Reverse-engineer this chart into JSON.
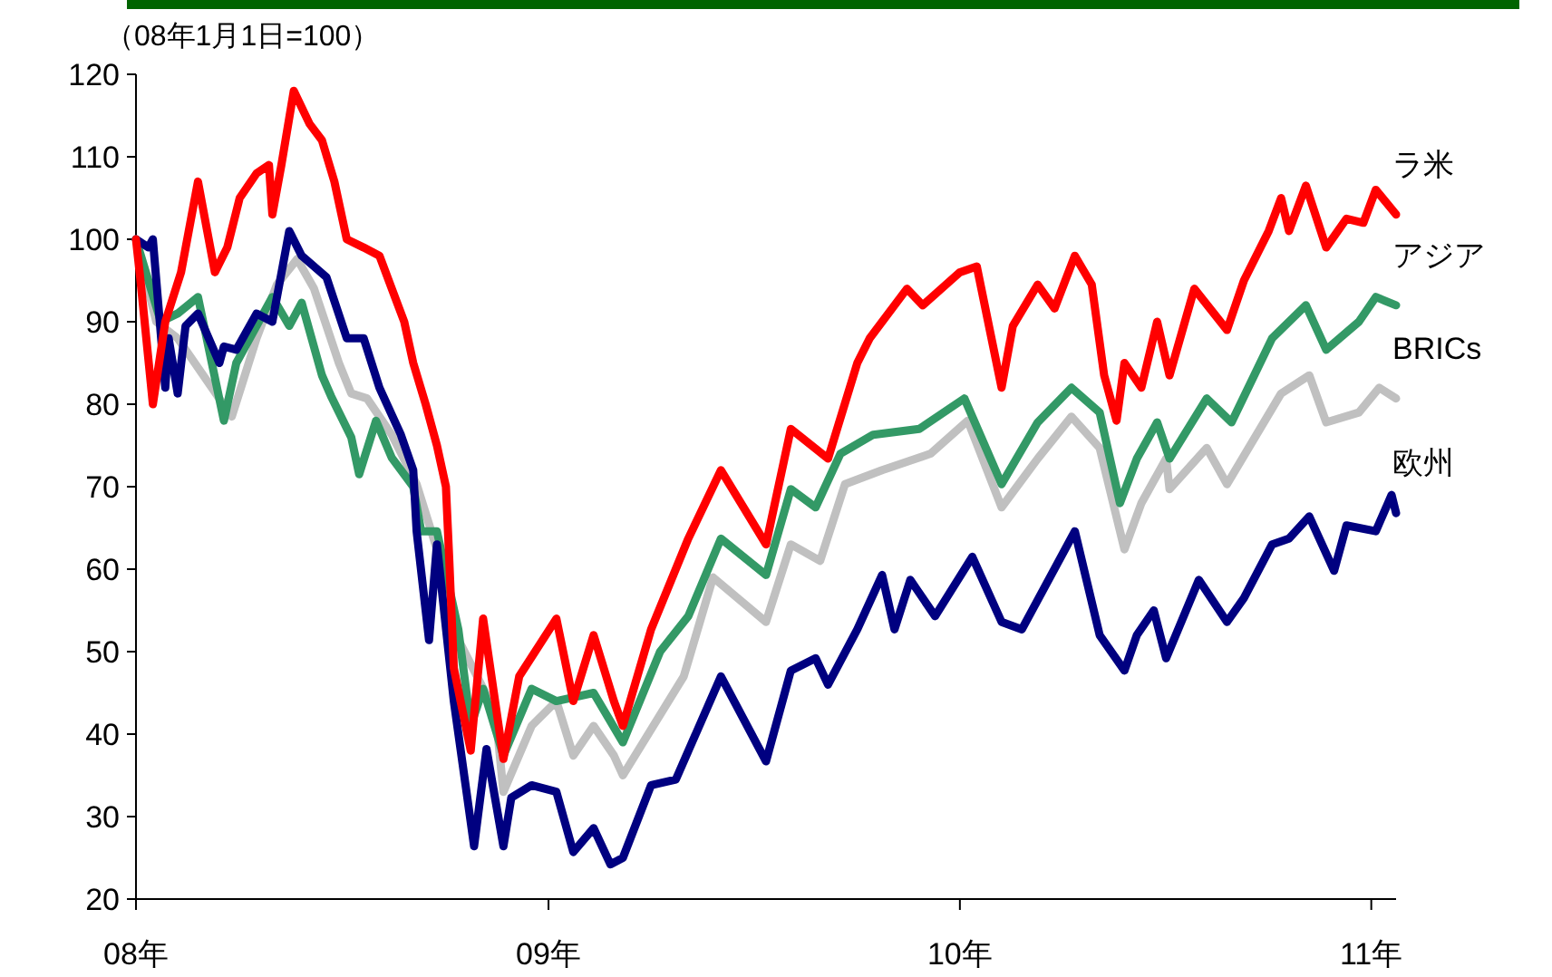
{
  "chart_data": {
    "type": "line",
    "ylabel": "（08年1月1日=100）",
    "xlim": [
      "2008-01-01",
      "2011-01-23"
    ],
    "ylim": [
      20,
      120
    ],
    "xticks": [
      {
        "value": "2008-01-01",
        "label": "08年"
      },
      {
        "value": "2009-01-01",
        "label": "09年"
      },
      {
        "value": "2010-01-01",
        "label": "10年"
      },
      {
        "value": "2011-01-01",
        "label": "11年"
      }
    ],
    "yticks": [
      20,
      30,
      40,
      50,
      60,
      70,
      80,
      90,
      100,
      110,
      120
    ],
    "series": [
      {
        "name": "BRICs",
        "color": "#c0c0c0",
        "x": [
          "2008-01-01",
          "2008-01-19",
          "2008-02-07",
          "2008-03-26",
          "2008-04-17",
          "2008-05-05",
          "2008-05-23",
          "2008-06-07",
          "2008-06-29",
          "2008-07-10",
          "2008-07-24",
          "2008-08-15",
          "2008-09-06",
          "2008-09-24",
          "2008-10-05",
          "2008-11-15",
          "2008-11-22",
          "2008-12-17",
          "2009-01-08",
          "2009-01-23",
          "2009-02-10",
          "2009-02-28",
          "2009-03-08",
          "2009-05-01",
          "2009-05-27",
          "2009-07-13",
          "2009-08-04",
          "2009-08-30",
          "2009-09-21",
          "2009-10-24",
          "2009-12-06",
          "2010-01-08",
          "2010-02-07",
          "2010-03-11",
          "2010-04-10",
          "2010-05-05",
          "2010-05-27",
          "2010-06-11",
          "2010-07-03",
          "2010-07-06",
          "2010-08-08",
          "2010-08-26",
          "2010-10-13",
          "2010-11-07",
          "2010-11-22",
          "2010-12-21",
          "2011-01-08",
          "2011-01-23"
        ],
        "values": [
          100,
          90,
          88,
          78.5,
          88,
          94.5,
          97.6,
          94,
          85,
          81.3,
          80.7,
          76.3,
          70.3,
          62.4,
          53.6,
          42.6,
          33,
          41,
          44,
          37.4,
          41,
          37.4,
          35,
          47,
          59,
          53.6,
          63,
          61,
          70.3,
          72,
          74,
          78,
          67.5,
          73.4,
          78.5,
          74.7,
          62.4,
          68,
          73.4,
          69.7,
          74.7,
          70.3,
          81.3,
          83.5,
          77.8,
          79,
          82,
          80.7
        ]
      },
      {
        "name": "アジア",
        "color": "#339966",
        "x": [
          "2008-01-01",
          "2008-01-23",
          "2008-02-07",
          "2008-02-25",
          "2008-03-19",
          "2008-03-30",
          "2008-05-01",
          "2008-05-16",
          "2008-05-27",
          "2008-06-14",
          "2008-06-22",
          "2008-07-10",
          "2008-07-17",
          "2008-08-01",
          "2008-08-15",
          "2008-09-03",
          "2008-09-10",
          "2008-09-24",
          "2008-10-13",
          "2008-10-24",
          "2008-11-04",
          "2008-11-22",
          "2008-12-17",
          "2009-01-08",
          "2009-02-10",
          "2009-03-08",
          "2009-04-10",
          "2009-05-05",
          "2009-06-03",
          "2009-07-13",
          "2009-08-04",
          "2009-08-26",
          "2009-09-17",
          "2009-10-16",
          "2009-11-26",
          "2010-01-05",
          "2010-02-07",
          "2010-03-11",
          "2010-04-10",
          "2010-05-05",
          "2010-05-23",
          "2010-06-07",
          "2010-06-25",
          "2010-07-06",
          "2010-08-08",
          "2010-08-30",
          "2010-10-05",
          "2010-11-04",
          "2010-11-22",
          "2010-12-21",
          "2011-01-05",
          "2011-01-23"
        ],
        "values": [
          100,
          90,
          91,
          93,
          78,
          85,
          93,
          89.5,
          92.3,
          83.5,
          81,
          76,
          71.5,
          78,
          73.5,
          70,
          64.6,
          64.6,
          52.7,
          41,
          45.5,
          37.4,
          45.5,
          44,
          45,
          39,
          50,
          54.3,
          63.7,
          59.3,
          69.7,
          67.5,
          74,
          76.3,
          77,
          80.7,
          70.3,
          77.8,
          82,
          79,
          68,
          73.4,
          77.8,
          73.4,
          80.7,
          77.8,
          88,
          92,
          86.6,
          90,
          93,
          92
        ]
      },
      {
        "name": "欧州",
        "color": "#000080",
        "x": [
          "2008-01-01",
          "2008-01-12",
          "2008-01-16",
          "2008-01-27",
          "2008-01-30",
          "2008-02-07",
          "2008-02-14",
          "2008-02-25",
          "2008-03-15",
          "2008-03-19",
          "2008-03-30",
          "2008-04-17",
          "2008-05-01",
          "2008-05-16",
          "2008-05-27",
          "2008-06-18",
          "2008-07-06",
          "2008-07-21",
          "2008-08-04",
          "2008-08-23",
          "2008-09-03",
          "2008-09-06",
          "2008-09-17",
          "2008-09-24",
          "2008-10-09",
          "2008-10-27",
          "2008-11-07",
          "2008-11-22",
          "2008-11-29",
          "2008-12-17",
          "2009-01-08",
          "2009-01-23",
          "2009-02-10",
          "2009-02-25",
          "2009-03-08",
          "2009-04-02",
          "2009-04-24",
          "2009-06-03",
          "2009-07-13",
          "2009-08-04",
          "2009-08-26",
          "2009-09-06",
          "2009-10-02",
          "2009-10-24",
          "2009-11-04",
          "2009-11-18",
          "2009-12-10",
          "2010-01-12",
          "2010-02-07",
          "2010-02-25",
          "2010-04-13",
          "2010-05-05",
          "2010-05-27",
          "2010-06-07",
          "2010-06-22",
          "2010-07-03",
          "2010-08-01",
          "2010-08-26",
          "2010-09-10",
          "2010-10-05",
          "2010-10-20",
          "2010-11-07",
          "2010-11-29",
          "2010-12-10",
          "2011-01-05",
          "2011-01-19",
          "2011-01-23"
        ],
        "values": [
          100,
          99,
          100,
          82,
          88,
          81.3,
          89.5,
          91,
          85,
          87,
          86.6,
          91,
          90,
          101,
          98,
          95.4,
          88,
          88,
          82,
          76.3,
          72,
          64.6,
          51.4,
          63,
          44,
          26.4,
          38.2,
          26.4,
          32.3,
          33.8,
          33,
          25.7,
          28.6,
          24.2,
          25,
          33.8,
          34.5,
          47,
          36.7,
          47.7,
          49.2,
          46,
          52.7,
          59.3,
          52.7,
          58.7,
          54.3,
          61.5,
          53.6,
          52.7,
          64.6,
          52,
          47.7,
          52,
          55,
          49.2,
          58.7,
          53.6,
          56.5,
          63,
          63.7,
          66.4,
          59.8,
          65.3,
          64.6,
          69,
          66.8
        ]
      },
      {
        "name": "ラ米",
        "color": "#ff0000",
        "x": [
          "2008-01-01",
          "2008-01-05",
          "2008-01-16",
          "2008-01-27",
          "2008-02-10",
          "2008-02-25",
          "2008-03-11",
          "2008-03-22",
          "2008-04-02",
          "2008-04-17",
          "2008-04-28",
          "2008-05-01",
          "2008-05-09",
          "2008-05-20",
          "2008-06-03",
          "2008-06-14",
          "2008-06-25",
          "2008-07-06",
          "2008-07-21",
          "2008-08-04",
          "2008-08-15",
          "2008-08-26",
          "2008-09-03",
          "2008-09-14",
          "2008-09-24",
          "2008-10-02",
          "2008-10-05",
          "2008-10-09",
          "2008-10-24",
          "2008-11-04",
          "2008-11-22",
          "2008-12-06",
          "2009-01-08",
          "2009-01-23",
          "2009-02-10",
          "2009-02-28",
          "2009-03-08",
          "2009-04-02",
          "2009-05-05",
          "2009-06-03",
          "2009-07-13",
          "2009-08-04",
          "2009-09-06",
          "2009-10-02",
          "2009-10-13",
          "2009-11-15",
          "2009-11-29",
          "2010-01-01",
          "2010-01-16",
          "2010-02-07",
          "2010-02-17",
          "2010-03-11",
          "2010-03-26",
          "2010-04-13",
          "2010-04-28",
          "2010-05-09",
          "2010-05-20",
          "2010-05-27",
          "2010-06-11",
          "2010-06-25",
          "2010-07-06",
          "2010-07-28",
          "2010-08-26",
          "2010-09-10",
          "2010-10-02",
          "2010-10-13",
          "2010-10-20",
          "2010-11-04",
          "2010-11-22",
          "2010-12-10",
          "2010-12-25",
          "2011-01-05",
          "2011-01-23"
        ],
        "values": [
          100,
          95,
          80,
          90,
          96,
          107,
          96,
          99,
          105,
          108,
          109,
          103,
          109,
          118,
          114,
          112,
          107,
          100,
          99,
          98,
          94,
          90,
          85,
          80,
          75,
          70,
          61,
          48,
          38,
          54,
          37,
          47,
          54,
          44,
          52,
          44,
          41,
          52.7,
          63.7,
          72,
          63,
          77,
          73.4,
          85,
          88,
          94,
          92,
          96,
          96.7,
          82,
          89.5,
          94.5,
          91.6,
          98,
          94.5,
          83.5,
          78,
          85,
          82,
          90,
          83.5,
          94,
          89,
          95,
          101,
          105,
          101,
          106.5,
          99,
          102.5,
          102,
          106,
          103
        ]
      }
    ]
  }
}
